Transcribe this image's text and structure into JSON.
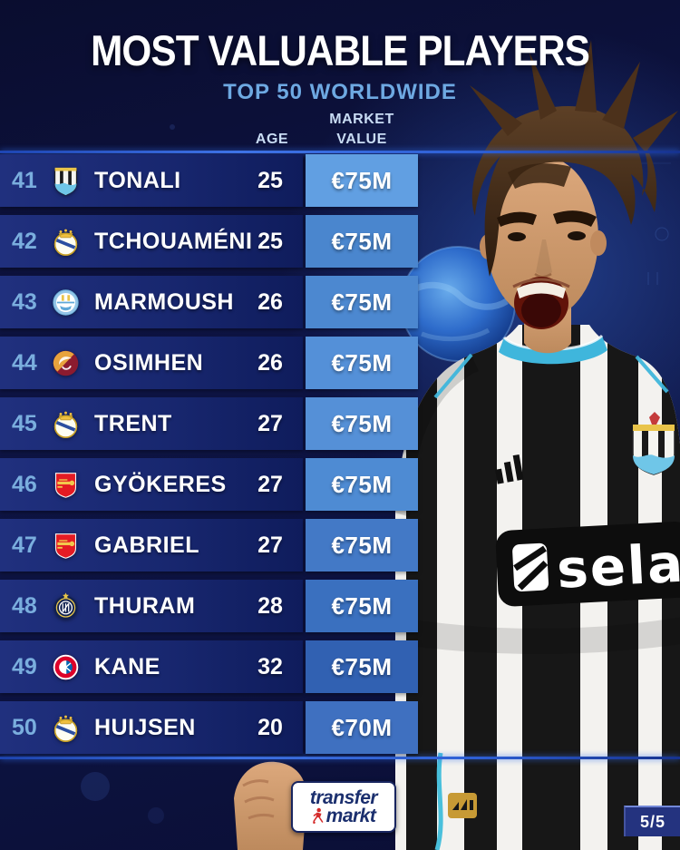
{
  "title": "MOST VALUABLE PLAYERS",
  "subtitle": "TOP 50 WORLDWIDE",
  "table": {
    "headers": {
      "age": "AGE",
      "market_value_line1": "MARKET",
      "market_value_line2": "VALUE"
    },
    "rows": [
      {
        "rank": "41",
        "player": "TONALI",
        "club": "newcastle",
        "age": "25",
        "value": "€75M",
        "value_cell_color": "#619fe2"
      },
      {
        "rank": "42",
        "player": "TCHOUAMÉNI",
        "club": "real-madrid",
        "age": "25",
        "value": "€75M",
        "value_cell_color": "#4a86ce"
      },
      {
        "rank": "43",
        "player": "MARMOUSH",
        "club": "man-city",
        "age": "26",
        "value": "€75M",
        "value_cell_color": "#4c88d0"
      },
      {
        "rank": "44",
        "player": "OSIMHEN",
        "club": "galatasaray",
        "age": "26",
        "value": "€75M",
        "value_cell_color": "#5490d8"
      },
      {
        "rank": "45",
        "player": "TRENT",
        "club": "real-madrid",
        "age": "27",
        "value": "€75M",
        "value_cell_color": "#5590d7"
      },
      {
        "rank": "46",
        "player": "GYÖKERES",
        "club": "arsenal",
        "age": "27",
        "value": "€75M",
        "value_cell_color": "#4e8bd3"
      },
      {
        "rank": "47",
        "player": "GABRIEL",
        "club": "arsenal",
        "age": "27",
        "value": "€75M",
        "value_cell_color": "#4379c6"
      },
      {
        "rank": "48",
        "player": "THURAM",
        "club": "inter",
        "age": "28",
        "value": "€75M",
        "value_cell_color": "#3a70bf"
      },
      {
        "rank": "49",
        "player": "KANE",
        "club": "bayern",
        "age": "32",
        "value": "€75M",
        "value_cell_color": "#3161b2"
      },
      {
        "rank": "50",
        "player": "HUIJSEN",
        "club": "real-madrid",
        "age": "20",
        "value": "€70M",
        "value_cell_color": "#3f70c0"
      }
    ]
  },
  "photo": {
    "jersey_sponsor": "sela"
  },
  "watermark": {
    "line1": "transfer",
    "line2": "markt"
  },
  "pager": {
    "label": "5/5"
  },
  "colors": {
    "background": "#0d1340",
    "row_bar": "#18276f",
    "rank_text": "#7aaede",
    "subtitle_text": "#6ea9e2",
    "header_text": "#c9dcf4",
    "highlight_value_cell": "#619fe2",
    "divider_glow": "#3f74e8",
    "pager_background": "#24337f"
  }
}
